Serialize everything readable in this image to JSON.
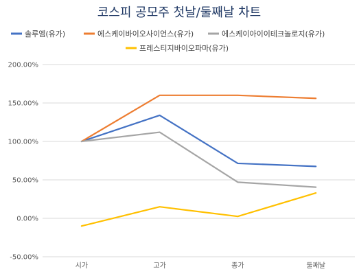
{
  "chart_data": {
    "type": "line",
    "title": "코스피 공모주 첫날/둘째날 차트",
    "categories": [
      "시가",
      "고가",
      "종가",
      "둘째날"
    ],
    "ylim": [
      -50,
      200
    ],
    "yticks": [
      200,
      150,
      100,
      50,
      0,
      -50
    ],
    "ytick_labels": [
      "200.00%",
      "150.00%",
      "100.00%",
      "50.00%",
      "0.00%",
      "-50.00%"
    ],
    "grid": true,
    "legend_position": "top",
    "series": [
      {
        "name": "솔루엠(유가)",
        "color": "#4472c4",
        "values": [
          100,
          134,
          71.5,
          67.5
        ]
      },
      {
        "name": "에스케이바이오사이언스(유가)",
        "color": "#ed7d31",
        "values": [
          100,
          160,
          160,
          156
        ]
      },
      {
        "name": "에스케이아이이테크놀로지(유가)",
        "color": "#a5a5a5",
        "values": [
          100,
          112,
          47,
          40.5
        ]
      },
      {
        "name": "프레스티지바이오파마(유가)",
        "color": "#ffc000",
        "values": [
          -10,
          15,
          2.5,
          33
        ]
      }
    ]
  }
}
